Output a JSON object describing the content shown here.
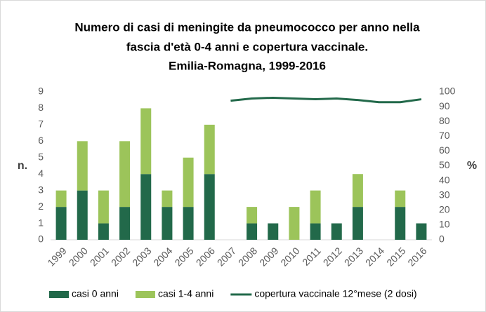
{
  "chart_data": {
    "type": "bar",
    "stacked": true,
    "title": [
      "Numero di casi di meningite da pneumococco per anno nella",
      "fascia d'età 0-4 anni e copertura vaccinale.",
      "Emilia-Romagna, 1999-2016"
    ],
    "y_label": "n.",
    "y2_label": "%",
    "categories": [
      "1999",
      "2000",
      "2001",
      "2002",
      "2003",
      "2004",
      "2005",
      "2006",
      "2007",
      "2008",
      "2009",
      "2010",
      "2011",
      "2012",
      "2013",
      "2014",
      "2015",
      "2016"
    ],
    "series": [
      {
        "name": "casi 0 anni",
        "color": "#22694a",
        "values": [
          2,
          3,
          1,
          2,
          4,
          2,
          2,
          4,
          0,
          1,
          1,
          0,
          1,
          1,
          2,
          0,
          2,
          1
        ]
      },
      {
        "name": "casi 1-4 anni",
        "color": "#9cc45a",
        "values": [
          1,
          3,
          2,
          4,
          4,
          1,
          3,
          3,
          0,
          1,
          0,
          2,
          2,
          0,
          2,
          0,
          1,
          0
        ]
      },
      {
        "name": "copertura vaccinale 12°mese (2 dosi)",
        "color": "#22694a",
        "type": "line",
        "axis": "y2",
        "values": [
          null,
          null,
          null,
          null,
          null,
          null,
          null,
          null,
          94,
          95.5,
          96,
          95.5,
          95,
          95.5,
          94.5,
          93,
          93,
          95
        ]
      }
    ],
    "ylim": [
      0,
      9
    ],
    "yticks": [
      0,
      1,
      2,
      3,
      4,
      5,
      6,
      7,
      8,
      9
    ],
    "y2lim": [
      0,
      100
    ],
    "y2ticks": [
      0,
      10,
      20,
      30,
      40,
      50,
      60,
      70,
      80,
      90,
      100
    ],
    "grid": false,
    "legend": "bottom"
  }
}
